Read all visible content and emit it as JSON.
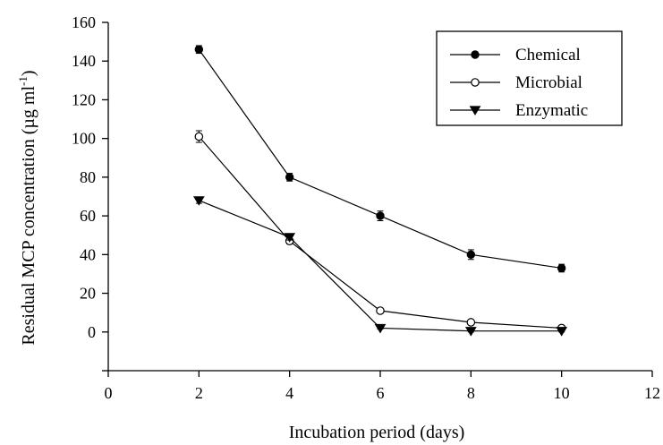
{
  "chart_data": {
    "type": "line",
    "title": "",
    "xlabel": "Incubation period (days)",
    "ylabel_main": "Residual MCP concentration (µg ml",
    "ylabel_sup": "-1",
    "ylabel_close": ")",
    "xlim": [
      0,
      12
    ],
    "ylim": [
      -20,
      160
    ],
    "xticks": [
      0,
      2,
      4,
      6,
      8,
      10,
      12
    ],
    "yticks": [
      0,
      20,
      40,
      60,
      80,
      100,
      120,
      140,
      160
    ],
    "grid": false,
    "legend_position": "top-right",
    "series": [
      {
        "name": "Chemical",
        "marker": "filled-circle",
        "x": [
          2,
          4,
          6,
          8,
          10
        ],
        "y": [
          146,
          80,
          60,
          40,
          33
        ],
        "err": [
          2,
          2,
          2.5,
          2.5,
          2
        ]
      },
      {
        "name": "Microbial",
        "marker": "open-circle",
        "x": [
          2,
          4,
          6,
          8,
          10
        ],
        "y": [
          101,
          47,
          11,
          5,
          2
        ],
        "err": [
          3,
          1.5,
          1,
          1,
          0.5
        ]
      },
      {
        "name": "Enzymatic",
        "marker": "filled-triangle-down",
        "x": [
          2,
          4,
          6,
          8,
          10
        ],
        "y": [
          68,
          49,
          2,
          0.5,
          0.5
        ],
        "err": [
          1.5,
          1.5,
          0.5,
          0.5,
          0.5
        ]
      }
    ]
  }
}
